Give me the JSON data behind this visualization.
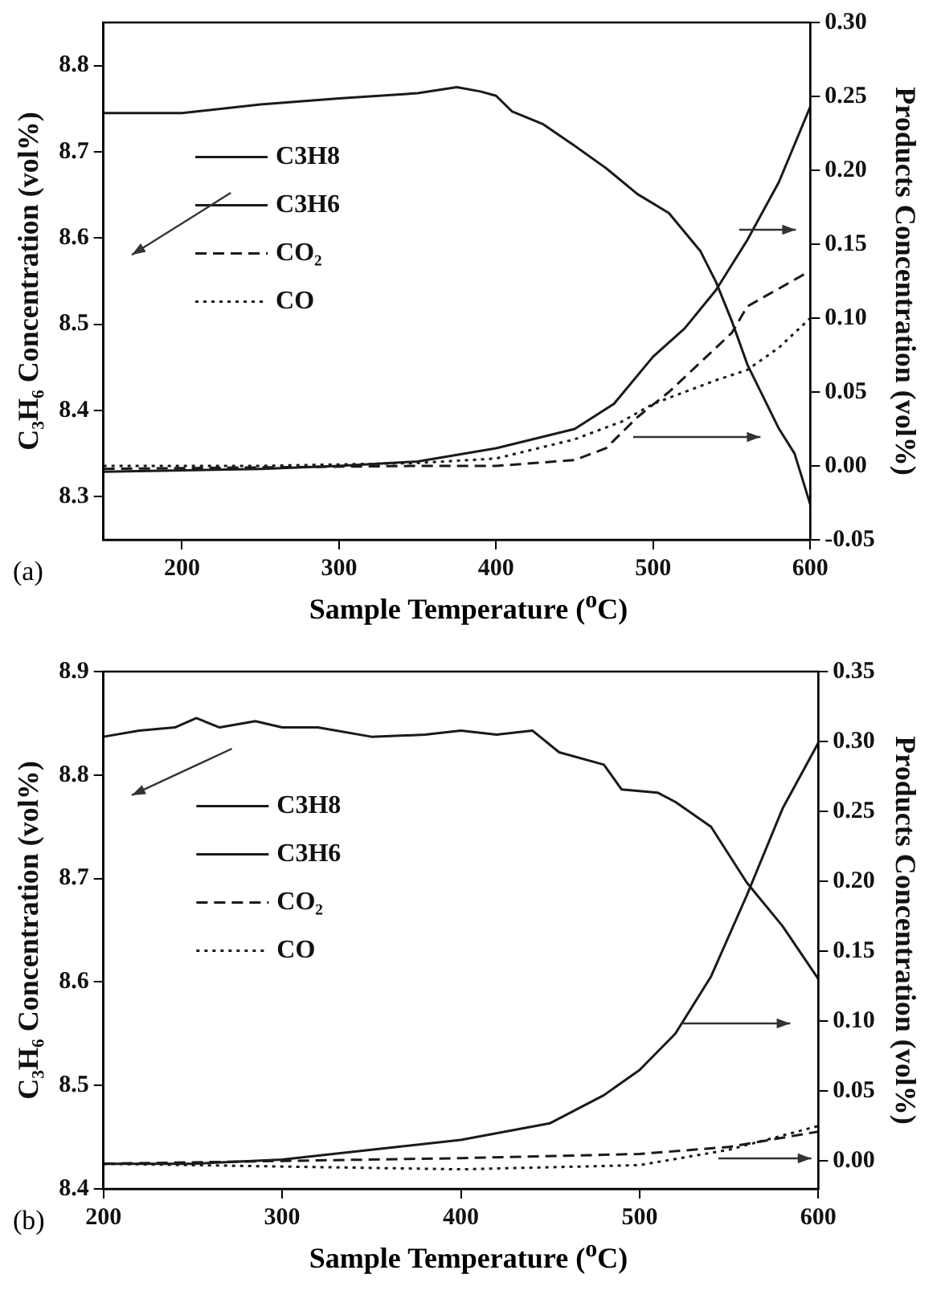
{
  "chart_data": [
    {
      "type": "line",
      "xlabel": "Sample Temperature ($^{o}$C)",
      "ylabel": "C₃H₆ Concentration (vol%)",
      "y2label": "Products Concentration (vol%)",
      "annotations": [
        "(a)"
      ],
      "xlim": [
        150,
        600
      ],
      "xticks": [
        200,
        300,
        400,
        500,
        600
      ],
      "ylim": [
        8.25,
        8.85
      ],
      "yticks": [
        8.3,
        8.4,
        8.5,
        8.6,
        8.7,
        8.8
      ],
      "y2lim": [
        -0.05,
        0.3
      ],
      "y2ticks": [
        -0.05,
        {
          "value": 0,
          "label": "0.00"
        },
        0.05,
        {
          "value": 0.1,
          "label": "0.10"
        },
        0.15,
        {
          "value": 0.2,
          "label": "0.20"
        },
        0.25,
        {
          "value": 0.3,
          "label": "0.30"
        }
      ],
      "grid": false,
      "legend": "left",
      "marker": "none",
      "series": [
        {
          "name": "C3H8",
          "color": "#1a1a1a",
          "line_style": "solid",
          "x": [
            150,
            200,
            250,
            300,
            350,
            375,
            390,
            400,
            410,
            430,
            450,
            470,
            490,
            510,
            530,
            540,
            550,
            560,
            570,
            580,
            590,
            600
          ],
          "values": [
            8.745,
            8.745,
            8.755,
            8.762,
            8.768,
            8.775,
            8.77,
            8.765,
            8.747,
            8.732,
            8.707,
            8.681,
            8.651,
            8.629,
            8.585,
            8.549,
            8.504,
            8.453,
            8.416,
            8.379,
            8.35,
            8.291
          ]
        },
        {
          "name": "C3H6",
          "color": "#1a1a1a",
          "line_style": "solid",
          "axis": "y2",
          "x": [
            150,
            250,
            300,
            350,
            400,
            450,
            475,
            500,
            520,
            540,
            560,
            580,
            600
          ],
          "values": [
            -0.004,
            -0.002,
            0,
            0.003,
            0.012,
            0.025,
            0.042,
            0.074,
            0.093,
            0.119,
            0.153,
            0.192,
            0.243
          ]
        },
        {
          "name": "CO₂",
          "color": "#1a1a1a",
          "line_style": "dashed",
          "axis": "y2",
          "x": [
            150,
            250,
            350,
            400,
            450,
            470,
            490,
            510,
            530,
            550,
            560,
            580,
            600
          ],
          "values": [
            -0.002,
            -0.001,
            0,
            0,
            0.004,
            0.012,
            0.033,
            0.05,
            0.07,
            0.09,
            0.108,
            0.12,
            0.132
          ]
        },
        {
          "name": "CO",
          "color": "#1a1a1a",
          "line_style": "dotted",
          "axis": "y2",
          "x": [
            150,
            250,
            350,
            400,
            450,
            480,
            500,
            520,
            540,
            560,
            580,
            600
          ],
          "values": [
            0,
            0,
            0.002,
            0.005,
            0.018,
            0.03,
            0.042,
            0.05,
            0.058,
            0.065,
            0.08,
            0.1
          ]
        }
      ]
    },
    {
      "type": "line",
      "xlabel": "Sample Temperature ($^{o}$C)",
      "ylabel": "C₃H₆ Concentration (vol%)",
      "y2label": "Products Concentration (vol%)",
      "annotations": [
        "(b)"
      ],
      "xlim": [
        200,
        600
      ],
      "xticks": [
        200,
        300,
        400,
        500,
        600
      ],
      "ylim": [
        8.4,
        8.9
      ],
      "yticks": [
        8.4,
        8.5,
        8.6,
        8.7,
        8.8,
        8.9
      ],
      "y2lim": [
        -0.02,
        0.35
      ],
      "y2ticks": [
        {
          "value": 0,
          "label": "0.00"
        },
        0.05,
        {
          "value": 0.1,
          "label": "0.10"
        },
        0.15,
        {
          "value": 0.2,
          "label": "0.20"
        },
        0.25,
        {
          "value": 0.3,
          "label": "0.30"
        },
        0.35
      ],
      "grid": false,
      "legend": "left",
      "marker": "none",
      "series": [
        {
          "name": "C3H8",
          "color": "#1a1a1a",
          "line_style": "solid",
          "x": [
            200,
            220,
            240,
            252,
            265,
            285,
            300,
            320,
            350,
            380,
            400,
            420,
            440,
            455,
            480,
            490,
            510,
            520,
            540,
            560,
            580,
            600
          ],
          "values": [
            8.837,
            8.843,
            8.846,
            8.855,
            8.846,
            8.852,
            8.846,
            8.846,
            8.837,
            8.839,
            8.843,
            8.839,
            8.843,
            8.822,
            8.81,
            8.786,
            8.783,
            8.774,
            8.75,
            8.696,
            8.654,
            8.603
          ]
        },
        {
          "name": "C3H6",
          "color": "#1a1a1a",
          "line_style": "solid",
          "axis": "y2",
          "x": [
            200,
            250,
            300,
            350,
            400,
            450,
            480,
            500,
            520,
            540,
            560,
            580,
            600
          ],
          "values": [
            -0.002,
            -0.002,
            0.001,
            0.008,
            0.015,
            0.027,
            0.047,
            0.065,
            0.091,
            0.132,
            0.19,
            0.252,
            0.299
          ]
        },
        {
          "name": "CO₂",
          "color": "#1a1a1a",
          "line_style": "dashed",
          "axis": "y2",
          "x": [
            200,
            300,
            400,
            500,
            550,
            600
          ],
          "values": [
            -0.002,
            0,
            0.002,
            0.005,
            0.01,
            0.021
          ]
        },
        {
          "name": "CO",
          "color": "#1a1a1a",
          "line_style": "dotted",
          "axis": "y2",
          "x": [
            200,
            300,
            400,
            500,
            550,
            600
          ],
          "values": [
            -0.002,
            -0.004,
            -0.006,
            -0.003,
            0.008,
            0.025
          ]
        }
      ]
    }
  ]
}
